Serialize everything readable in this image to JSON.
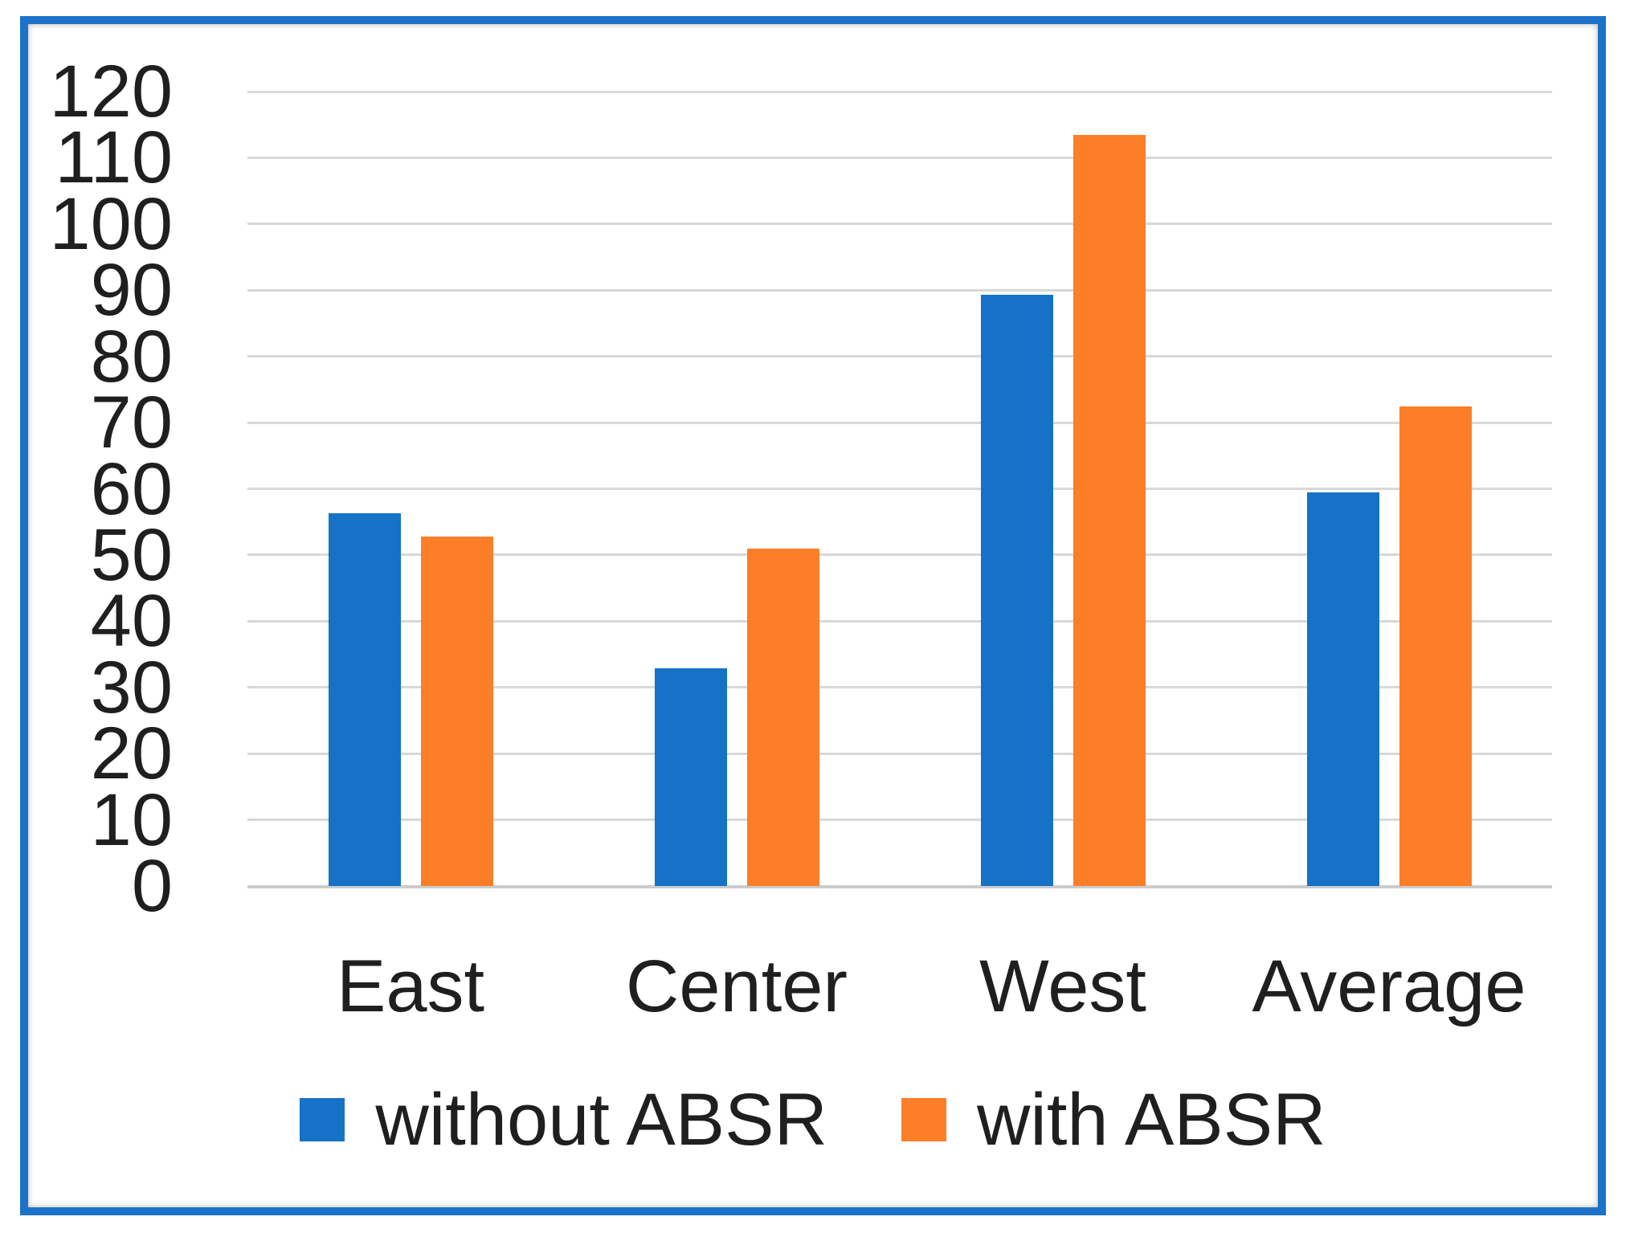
{
  "colors": {
    "frame_border": "#1B72C8",
    "gridline": "#D8D8D8",
    "text": "#1F1F1F",
    "series_blue": "#1572C6",
    "series_orange": "#FC7E27"
  },
  "chart_data": {
    "type": "bar",
    "title": "",
    "xlabel": "",
    "ylabel": "",
    "categories": [
      "East",
      "Center",
      "West",
      "Average"
    ],
    "series": [
      {
        "name": "without ABSR",
        "color": "#1572C6",
        "values": [
          56.3,
          32.9,
          89.3,
          59.5
        ]
      },
      {
        "name": "with ABSR",
        "color": "#FC7E27",
        "values": [
          52.8,
          51.0,
          113.4,
          72.4
        ]
      }
    ],
    "ylim": [
      0,
      120
    ],
    "yticks": [
      0,
      10,
      20,
      30,
      40,
      50,
      60,
      70,
      80,
      90,
      100,
      110,
      120
    ],
    "grid": "horizontal",
    "legend_position": "bottom"
  }
}
